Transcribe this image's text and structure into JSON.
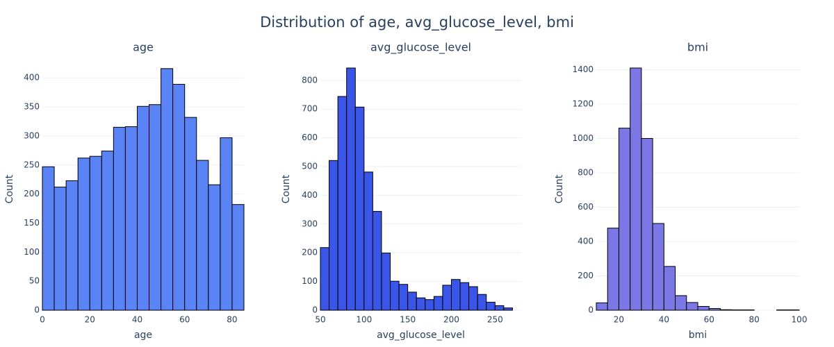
{
  "title": "Distribution of age, avg_glucose_level, bmi",
  "chart_data": [
    {
      "type": "histogram",
      "title": "age",
      "xlabel": "age",
      "ylabel": "Count",
      "color": "#5a84f5",
      "bins": [
        0,
        5,
        10,
        15,
        20,
        25,
        30,
        35,
        40,
        45,
        50,
        55,
        60,
        65,
        70,
        75,
        80,
        85
      ],
      "values": [
        247,
        212,
        223,
        262,
        265,
        274,
        315,
        316,
        351,
        354,
        416,
        389,
        332,
        258,
        216,
        297,
        182
      ],
      "xlim": [
        0,
        85
      ],
      "ylim": [
        0,
        417
      ],
      "xticks": [
        0,
        20,
        40,
        60,
        80
      ],
      "yticks": [
        0,
        50,
        100,
        150,
        200,
        250,
        300,
        350,
        400
      ],
      "grid": true
    },
    {
      "type": "histogram",
      "title": "avg_glucose_level",
      "xlabel": "avg_glucose_level",
      "ylabel": "Count",
      "color": "#3a56e8",
      "bins": [
        50,
        60,
        70,
        80,
        90,
        100,
        110,
        120,
        130,
        140,
        150,
        160,
        170,
        180,
        190,
        200,
        210,
        220,
        230,
        240,
        250,
        260,
        270
      ],
      "values": [
        218,
        521,
        744,
        843,
        707,
        481,
        344,
        199,
        101,
        90,
        63,
        43,
        37,
        48,
        87,
        107,
        96,
        82,
        55,
        28,
        16,
        8
      ],
      "xlim": [
        50,
        280
      ],
      "ylim": [
        0,
        843
      ],
      "xticks": [
        50,
        100,
        150,
        200,
        250
      ],
      "yticks": [
        0,
        100,
        200,
        300,
        400,
        500,
        600,
        700,
        800
      ],
      "grid": true
    },
    {
      "type": "histogram",
      "title": "bmi",
      "xlabel": "bmi",
      "ylabel": "Count",
      "color": "#7b78e6",
      "bins": [
        10,
        15,
        20,
        25,
        30,
        35,
        40,
        45,
        50,
        55,
        60,
        65,
        70,
        75,
        80,
        85,
        90,
        95,
        100
      ],
      "values": [
        43,
        478,
        1060,
        1410,
        1000,
        505,
        255,
        85,
        45,
        22,
        10,
        3,
        2,
        2,
        0,
        0,
        2,
        2
      ],
      "xlim": [
        10,
        100
      ],
      "ylim": [
        0,
        1410
      ],
      "xticks": [
        20,
        40,
        60,
        80,
        100
      ],
      "yticks": [
        0,
        200,
        400,
        600,
        800,
        1000,
        1200,
        1400
      ],
      "grid": true
    }
  ]
}
